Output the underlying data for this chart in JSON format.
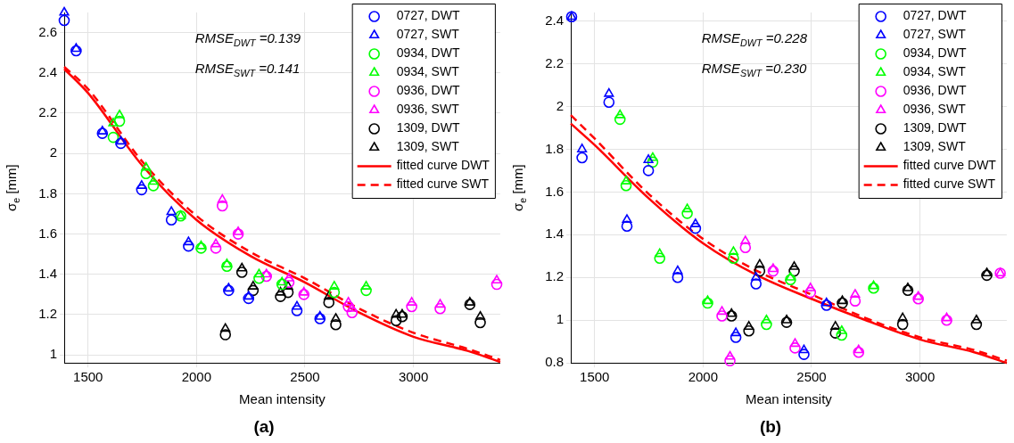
{
  "chart_data": [
    {
      "type": "scatter",
      "title": "(a)",
      "xlabel": "Mean intensity",
      "ylabel": "σ$_{e}$ [mm]",
      "xlim": [
        1390,
        3400
      ],
      "xticks": [
        1500,
        2000,
        2500,
        3000
      ],
      "ylim": [
        0.96,
        2.7
      ],
      "yticks": [
        1,
        1.2,
        1.4,
        1.6,
        1.8,
        2,
        2.2,
        2.4,
        2.6
      ],
      "grid": true,
      "legend": "top right",
      "annotations": [
        "RMSE$_{DWT}$ =0.139",
        "RMSE$_{SWT}$ =0.141"
      ],
      "series": [
        {
          "name": "0727, DWT",
          "color": "#0000ff",
          "marker": "circle",
          "x": [
            1390,
            1445,
            1566,
            1651,
            1747,
            1884,
            1963,
            2148,
            2240,
            2463,
            2569
          ],
          "values": [
            2.66,
            2.51,
            2.1,
            2.05,
            1.82,
            1.67,
            1.54,
            1.32,
            1.28,
            1.22,
            1.18
          ]
        },
        {
          "name": "0727, SWT",
          "color": "#0000ff",
          "marker": "triangle",
          "x": [
            1390,
            1445,
            1566,
            1651,
            1747,
            1884,
            1963,
            2148,
            2240,
            2463,
            2569
          ],
          "values": [
            2.7,
            2.52,
            2.11,
            2.06,
            1.84,
            1.71,
            1.56,
            1.33,
            1.29,
            1.24,
            1.19
          ]
        },
        {
          "name": "0934, DWT",
          "color": "#00ff00",
          "marker": "circle",
          "x": [
            1616,
            1645,
            1767,
            1801,
            1927,
            2021,
            2140,
            2288,
            2394,
            2635,
            2782
          ],
          "values": [
            2.08,
            2.16,
            1.9,
            1.84,
            1.69,
            1.53,
            1.44,
            1.38,
            1.35,
            1.31,
            1.32
          ]
        },
        {
          "name": "0934, SWT",
          "color": "#00ff00",
          "marker": "triangle",
          "x": [
            1616,
            1645,
            1767,
            1801,
            1927,
            2021,
            2140,
            2288,
            2394,
            2635,
            2782
          ],
          "values": [
            2.15,
            2.19,
            1.93,
            1.86,
            1.69,
            1.54,
            1.45,
            1.4,
            1.36,
            1.34,
            1.34
          ]
        },
        {
          "name": "0936, DWT",
          "color": "#ff00ff",
          "marker": "circle",
          "x": [
            2089,
            2119,
            2192,
            2322,
            2426,
            2495,
            2700,
            2717,
            2992,
            3123,
            3384
          ],
          "values": [
            1.53,
            1.74,
            1.6,
            1.39,
            1.36,
            1.3,
            1.24,
            1.21,
            1.24,
            1.23,
            1.35
          ]
        },
        {
          "name": "0936, SWT",
          "color": "#ff00ff",
          "marker": "triangle",
          "x": [
            2089,
            2119,
            2192,
            2322,
            2426,
            2495,
            2700,
            2717,
            2992,
            3123,
            3384
          ],
          "values": [
            1.55,
            1.77,
            1.61,
            1.4,
            1.38,
            1.31,
            1.26,
            1.23,
            1.26,
            1.25,
            1.37
          ]
        },
        {
          "name": "1309, DWT",
          "color": "#000000",
          "marker": "circle",
          "x": [
            2133,
            2209,
            2261,
            2387,
            2422,
            2610,
            2642,
            2920,
            2948,
            3260,
            3308
          ],
          "values": [
            1.1,
            1.41,
            1.32,
            1.29,
            1.31,
            1.26,
            1.15,
            1.17,
            1.19,
            1.25,
            1.16
          ]
        },
        {
          "name": "1309, SWT",
          "color": "#000000",
          "marker": "triangle",
          "x": [
            2133,
            2209,
            2261,
            2387,
            2422,
            2610,
            2642,
            2920,
            2948,
            3260,
            3308
          ],
          "values": [
            1.13,
            1.43,
            1.34,
            1.31,
            1.34,
            1.29,
            1.18,
            1.2,
            1.2,
            1.26,
            1.19
          ]
        },
        {
          "name": "fitted curve DWT",
          "type": "line",
          "color": "#ff0000",
          "line_style": "solid",
          "x": [
            1390,
            1500,
            1750,
            2000,
            2250,
            2500,
            2750,
            3000,
            3250,
            3400
          ],
          "values": [
            2.42,
            2.3,
            1.94,
            1.67,
            1.49,
            1.36,
            1.21,
            1.09,
            1.02,
            0.965
          ]
        },
        {
          "name": "fitted curve SWT",
          "type": "line",
          "color": "#ff0000",
          "line_style": "dashed",
          "x": [
            1390,
            1500,
            1750,
            2000,
            2250,
            2500,
            2750,
            3000,
            3250,
            3400
          ],
          "values": [
            2.43,
            2.32,
            1.96,
            1.69,
            1.51,
            1.38,
            1.23,
            1.11,
            1.03,
            0.975
          ]
        }
      ]
    },
    {
      "type": "scatter",
      "title": "(b)",
      "xlabel": "Mean intensity",
      "ylabel": "σ$_{e}$ [mm]",
      "xlim": [
        1390,
        3400
      ],
      "xticks": [
        1500,
        2000,
        2500,
        3000
      ],
      "ylim": [
        0.8,
        2.44
      ],
      "yticks": [
        0.8,
        1,
        1.2,
        1.4,
        1.6,
        1.8,
        2,
        2.2,
        2.4
      ],
      "grid": true,
      "legend": "top right",
      "annotations": [
        "RMSE$_{DWT}$ =0.228",
        "RMSE$_{SWT}$ =0.230"
      ],
      "series": [
        {
          "name": "0727, DWT",
          "color": "#0000ff",
          "marker": "circle",
          "x": [
            1394,
            1442,
            1566,
            1649,
            1748,
            1883,
            1965,
            2151,
            2244,
            2465,
            2569
          ],
          "values": [
            2.42,
            1.76,
            2.02,
            1.44,
            1.7,
            1.2,
            1.43,
            0.92,
            1.17,
            0.84,
            1.07
          ]
        },
        {
          "name": "0727, SWT",
          "color": "#0000ff",
          "marker": "triangle",
          "x": [
            1394,
            1442,
            1566,
            1649,
            1748,
            1883,
            1965,
            2151,
            2244,
            2465,
            2569
          ],
          "values": [
            2.42,
            1.8,
            2.06,
            1.47,
            1.75,
            1.23,
            1.45,
            0.94,
            1.2,
            0.86,
            1.08
          ]
        },
        {
          "name": "0934, DWT",
          "color": "#00ff00",
          "marker": "circle",
          "x": [
            1617,
            1645,
            1768,
            1800,
            1927,
            2021,
            2140,
            2292,
            2403,
            2639,
            2786
          ],
          "values": [
            1.94,
            1.63,
            1.74,
            1.29,
            1.5,
            1.08,
            1.29,
            0.98,
            1.19,
            0.93,
            1.15
          ]
        },
        {
          "name": "0934, SWT",
          "color": "#00ff00",
          "marker": "triangle",
          "x": [
            1617,
            1645,
            1768,
            1800,
            1927,
            2021,
            2140,
            2292,
            2403,
            2639,
            2786
          ],
          "values": [
            1.96,
            1.65,
            1.76,
            1.31,
            1.52,
            1.09,
            1.32,
            1.0,
            1.2,
            0.95,
            1.16
          ]
        },
        {
          "name": "0936, DWT",
          "color": "#ff00ff",
          "marker": "circle",
          "x": [
            2087,
            2124,
            2195,
            2323,
            2424,
            2495,
            2701,
            2717,
            2992,
            3123,
            3370
          ],
          "values": [
            1.02,
            0.81,
            1.34,
            1.23,
            0.87,
            1.13,
            1.09,
            0.85,
            1.1,
            1.0,
            1.22
          ]
        },
        {
          "name": "0936, SWT",
          "color": "#ff00ff",
          "marker": "triangle",
          "x": [
            2087,
            2124,
            2195,
            2323,
            2424,
            2495,
            2701,
            2717,
            2992,
            3123,
            3370
          ],
          "values": [
            1.04,
            0.83,
            1.37,
            1.24,
            0.89,
            1.15,
            1.12,
            0.86,
            1.11,
            1.01,
            1.22
          ]
        },
        {
          "name": "1309, DWT",
          "color": "#000000",
          "marker": "circle",
          "x": [
            2131,
            2211,
            2261,
            2385,
            2420,
            2610,
            2642,
            2920,
            2944,
            3260,
            3308
          ],
          "values": [
            1.02,
            0.95,
            1.23,
            0.99,
            1.23,
            0.94,
            1.08,
            0.98,
            1.14,
            0.98,
            1.21
          ]
        },
        {
          "name": "1309, SWT",
          "color": "#000000",
          "marker": "triangle",
          "x": [
            2131,
            2211,
            2261,
            2385,
            2420,
            2610,
            2642,
            2920,
            2944,
            3260,
            3308
          ],
          "values": [
            1.03,
            0.97,
            1.26,
            1.0,
            1.25,
            0.97,
            1.09,
            1.01,
            1.15,
            1.0,
            1.22
          ]
        },
        {
          "name": "fitted curve DWT",
          "type": "line",
          "color": "#ff0000",
          "line_style": "solid",
          "x": [
            1390,
            1500,
            1750,
            2000,
            2250,
            2500,
            2750,
            3000,
            3250,
            3400
          ],
          "values": [
            1.92,
            1.82,
            1.57,
            1.36,
            1.21,
            1.1,
            1.0,
            0.91,
            0.85,
            0.8
          ]
        },
        {
          "name": "fitted curve SWT",
          "type": "line",
          "color": "#ff0000",
          "line_style": "dashed",
          "x": [
            1390,
            1500,
            1750,
            2000,
            2250,
            2500,
            2750,
            3000,
            3250,
            3400
          ],
          "values": [
            1.96,
            1.85,
            1.59,
            1.38,
            1.23,
            1.12,
            1.01,
            0.92,
            0.86,
            0.81
          ]
        }
      ]
    }
  ]
}
